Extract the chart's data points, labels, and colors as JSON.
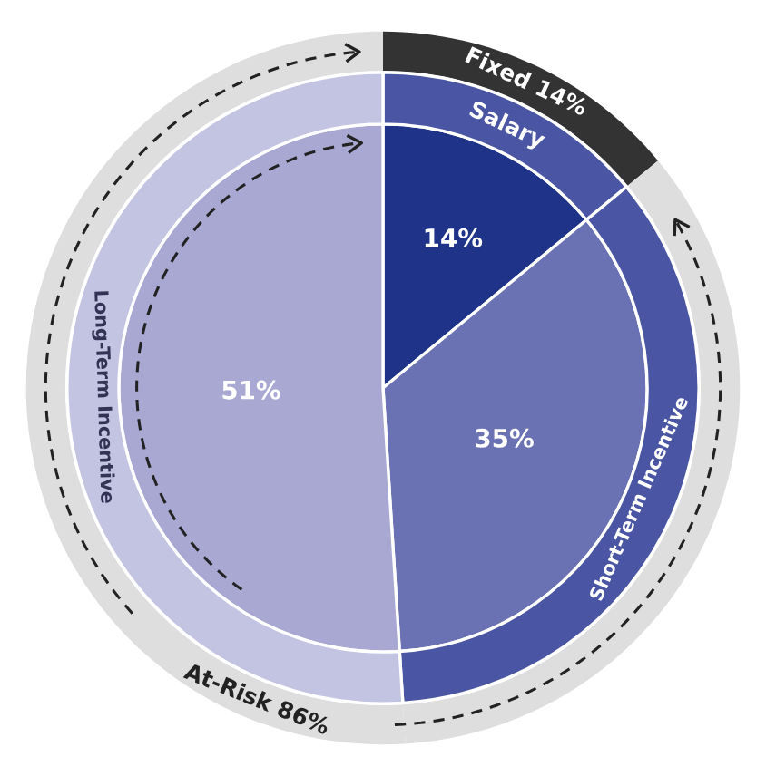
{
  "chart_data": {
    "type": "donut",
    "categories": [
      "Salary",
      "Short-Term Incentive",
      "Long-Term Incentive"
    ],
    "annotations": [
      "Fixed 14%",
      "At-Risk 86%"
    ],
    "series": [
      {
        "values": [
          14,
          35,
          51
        ],
        "colors": [
          "#333333",
          "#dedede",
          "#dedede"
        ]
      },
      {
        "type": "pie",
        "values": [
          14,
          35,
          51
        ],
        "value_labels": [
          "14%",
          "35%",
          "51%"
        ],
        "colors": [
          "#1f3388",
          "#6a72b3",
          "#a8a8d3"
        ]
      },
      {
        "values": [
          14,
          35,
          51
        ],
        "colors": [
          "#4a55a3",
          "#4a55a3",
          "#c3c3e2"
        ]
      }
    ]
  }
}
